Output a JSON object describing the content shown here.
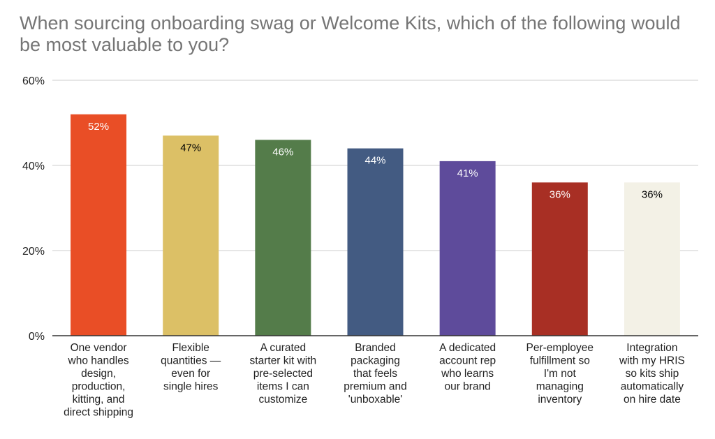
{
  "chart_data": {
    "type": "bar",
    "title": "When sourcing onboarding swag or Welcome Kits, which of the following would be most valuable to you?",
    "categories": [
      [
        "One vendor",
        "who handles",
        "design,",
        "production,",
        "kitting, and",
        "direct shipping"
      ],
      [
        "Flexible",
        "quantities —",
        "even for",
        "single hires"
      ],
      [
        "A curated",
        "starter kit with",
        "pre-selected",
        "items I can",
        "customize"
      ],
      [
        "Branded",
        "packaging",
        "that feels",
        "premium and",
        "'unboxable'"
      ],
      [
        "A dedicated",
        "account rep",
        "who learns",
        "our brand"
      ],
      [
        "Per-employee",
        "fulfillment so",
        "I'm not",
        "managing",
        "inventory"
      ],
      [
        "Integration",
        "with my HRIS",
        "so kits ship",
        "automatically",
        "on hire date"
      ]
    ],
    "values": [
      52,
      47,
      46,
      44,
      41,
      36,
      36
    ],
    "data_labels": [
      "52%",
      "47%",
      "46%",
      "44%",
      "41%",
      "36%",
      "36%"
    ],
    "colors": [
      "#e94e26",
      "#dcc066",
      "#547c4a",
      "#435b82",
      "#5e4b9b",
      "#a82f24",
      "#f3f1e6"
    ],
    "label_colors": [
      "#ffffff",
      "#000000",
      "#ffffff",
      "#ffffff",
      "#ffffff",
      "#ffffff",
      "#000000"
    ],
    "yticks": [
      "0%",
      "20%",
      "40%",
      "60%"
    ],
    "ytick_values": [
      0,
      20,
      40,
      60
    ],
    "ylim": [
      0,
      60
    ],
    "xlabel": "",
    "ylabel": "",
    "grid": true,
    "legend": "none"
  }
}
